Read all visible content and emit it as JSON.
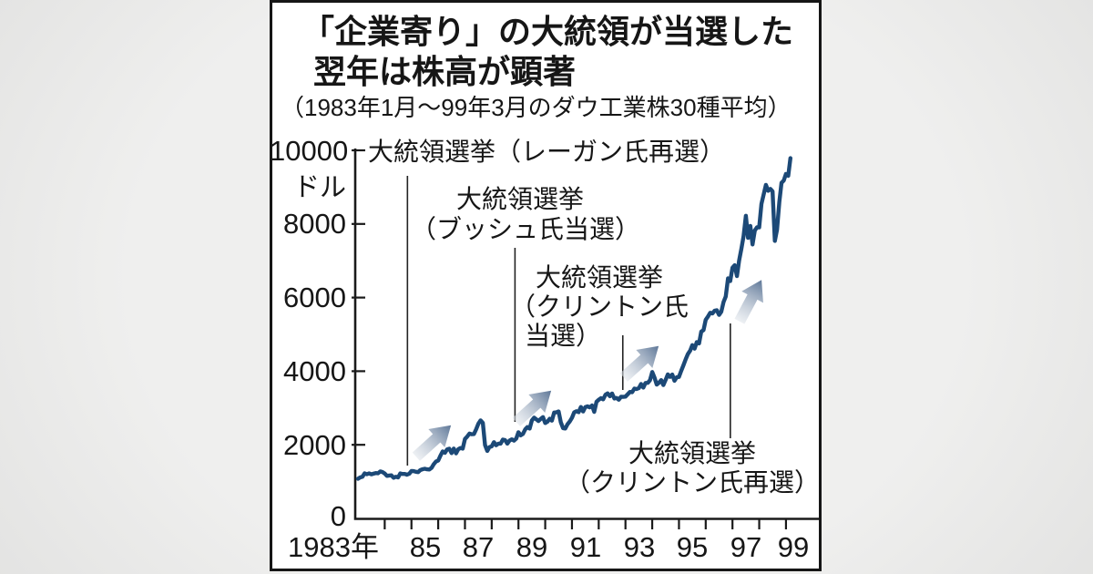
{
  "card": {
    "title_line1": "「企業寄り」の大統領が当選した",
    "title_line2": "翌年は株高が顕著",
    "subtitle": "（1983年1月～99年3月のダウ工業株30種平均）"
  },
  "y_axis": {
    "labels": [
      "10000",
      "8000",
      "6000",
      "4000",
      "2000",
      "0"
    ],
    "unit": "ドル",
    "range": [
      0,
      10000
    ],
    "tick_interval": 2000
  },
  "x_axis": {
    "labels": [
      "1983年",
      "85",
      "87",
      "89",
      "91",
      "93",
      "95",
      "97",
      "99"
    ],
    "minor_ticks_every_year_from": 1984,
    "minor_ticks_every_year_to": 1999
  },
  "colors": {
    "line": "#1c4977",
    "arrow_head": "#5d7697",
    "arrow_tail": "#dfe4ea",
    "axis": "#1a1a1a",
    "marker_line": "#222222",
    "card_border": "#161616",
    "card_bg": "#ffffff"
  },
  "chart_data": {
    "type": "line",
    "title": "「企業寄り」の大統領が当選した翌年は株高が顕著",
    "subtitle": "（1983年1月～99年3月のダウ工業株30種平均）",
    "grid": false,
    "ylim": [
      0,
      10000
    ],
    "y_ticks": [
      0,
      2000,
      4000,
      6000,
      8000,
      10000
    ],
    "y_unit": "ドル",
    "x_range_years": [
      1983.0,
      1999.25
    ],
    "x_tick_labels": [
      "1983年",
      "85",
      "87",
      "89",
      "91",
      "93",
      "95",
      "97",
      "99"
    ],
    "series": [
      {
        "name": "ダウ工業株30種平均",
        "start": "1983-01",
        "end": "1999-03",
        "frequency": "monthly",
        "values": [
          1076,
          1113,
          1130,
          1226,
          1200,
          1222,
          1199,
          1216,
          1233,
          1225,
          1276,
          1259,
          1221,
          1155,
          1165,
          1171,
          1105,
          1132,
          1115,
          1224,
          1207,
          1207,
          1189,
          1212,
          1287,
          1284,
          1267,
          1258,
          1315,
          1336,
          1348,
          1334,
          1329,
          1374,
          1472,
          1547,
          1571,
          1709,
          1819,
          1784,
          1877,
          1893,
          1775,
          1898,
          1768,
          1878,
          1914,
          1896,
          2158,
          2224,
          2305,
          2286,
          2291,
          2419,
          2572,
          2663,
          2596,
          1994,
          1834,
          1939,
          1958,
          2072,
          1988,
          2032,
          2031,
          2142,
          2129,
          2032,
          2113,
          2149,
          2115,
          2169,
          2342,
          2258,
          2294,
          2419,
          2480,
          2440,
          2661,
          2737,
          2693,
          2645,
          2706,
          2753,
          2591,
          2627,
          2707,
          2657,
          2877,
          2881,
          2905,
          2614,
          2453,
          2442,
          2560,
          2634,
          2736,
          2882,
          2914,
          2888,
          3028,
          2907,
          3025,
          3044,
          3017,
          3069,
          2895,
          3169,
          3223,
          3268,
          3236,
          3359,
          3397,
          3319,
          3394,
          3257,
          3272,
          3226,
          3305,
          3301,
          3310,
          3371,
          3435,
          3428,
          3527,
          3516,
          3540,
          3651,
          3555,
          3681,
          3684,
          3754,
          3978,
          3832,
          3636,
          3682,
          3758,
          3625,
          3765,
          3913,
          3843,
          3908,
          3739,
          3834,
          3844,
          4011,
          4158,
          4321,
          4465,
          4556,
          4708,
          4611,
          4789,
          4756,
          5075,
          5117,
          5395,
          5486,
          5587,
          5569,
          5643,
          5655,
          5529,
          5616,
          5882,
          6029,
          6522,
          6448,
          6813,
          6878,
          6584,
          7009,
          7331,
          7673,
          8223,
          7622,
          7945,
          7442,
          7823,
          7908,
          7907,
          8546,
          8800,
          9063,
          8900,
          8952,
          8883,
          7539,
          7843,
          8592,
          9117,
          9181,
          9359,
          9307,
          9786
        ]
      }
    ],
    "annotations": [
      {
        "label": "大統領選挙（レーガン氏再選）",
        "lines": [
          "大統領選挙（レーガン氏再選）"
        ],
        "x_year": 1984.85
      },
      {
        "label": "大統領選挙（ブッシュ氏当選）",
        "lines": [
          "大統領選挙",
          "（ブッシュ氏当選）"
        ],
        "x_year": 1988.87
      },
      {
        "label": "大統領選挙（クリントン氏当選）",
        "lines": [
          "大統領選挙",
          "（クリントン氏",
          "当選）"
        ],
        "x_year": 1992.9
      },
      {
        "label": "大統領選挙（クリントン氏再選）",
        "lines": [
          "大統領選挙",
          "（クリントン氏再選）"
        ],
        "x_year": 1996.92
      }
    ]
  }
}
